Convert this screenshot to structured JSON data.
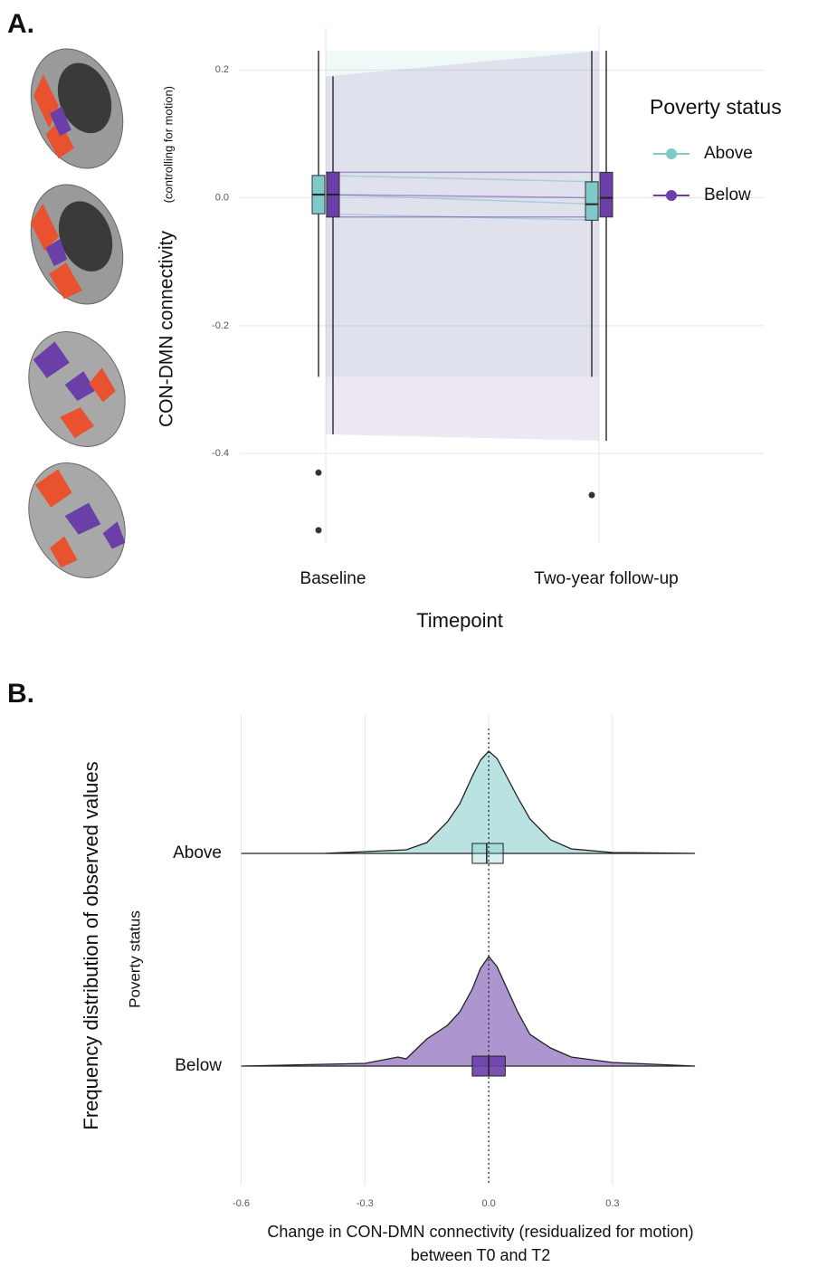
{
  "chart_data": [
    {
      "type": "boxplot",
      "panel_label": "A.",
      "categories": [
        "Baseline",
        "Two-year follow-up"
      ],
      "xlabel": "Timepoint",
      "ylabel": "CON-DMN connectivity",
      "ylabel_note": "(controlling for motion)",
      "ylim": [
        -0.54,
        0.267
      ],
      "yticks": [
        0.2,
        {
          "value": 0,
          "label": "0.0"
        },
        -0.2,
        -0.4
      ],
      "grid": true,
      "legend_title": "Poverty status",
      "legend_position": "right",
      "series": [
        {
          "name": "Above",
          "color": "#7fcac9",
          "stats": [
            {
              "low": -0.28,
              "q1": -0.025,
              "median": 0.005,
              "q3": 0.035,
              "high": 0.23,
              "outliers": [
                -0.43,
                -0.52
              ]
            },
            {
              "low": -0.28,
              "q1": -0.035,
              "median": -0.01,
              "q3": 0.025,
              "high": 0.23,
              "outliers": [
                -0.465
              ]
            }
          ]
        },
        {
          "name": "Below",
          "color": "#6a3fa8",
          "stats": [
            {
              "low": -0.37,
              "q1": -0.03,
              "median": 0.005,
              "q3": 0.04,
              "high": 0.19,
              "outliers": []
            },
            {
              "low": -0.38,
              "q1": -0.03,
              "median": 0.0,
              "q3": 0.04,
              "high": 0.23,
              "outliers": []
            }
          ]
        }
      ]
    },
    {
      "type": "raincloud",
      "panel_label": "B.",
      "categories": [
        "Above",
        "Below"
      ],
      "xlabel": [
        "Change in CON-DMN connectivity (residualized for motion)",
        "between T0 and T2"
      ],
      "ylabel": "Poverty status",
      "outer_ylabel": "Frequency distribution of observed values",
      "xlim": [
        -0.61,
        0.57
      ],
      "xticks": [
        -0.6,
        -0.3,
        {
          "value": 0,
          "label": "0.0"
        },
        0.3
      ],
      "reference_line": 0,
      "grid": true,
      "series": [
        {
          "name": "Above",
          "color": "#7fcac9",
          "density_x": [
            -0.6,
            -0.4,
            -0.3,
            -0.2,
            -0.15,
            -0.1,
            -0.07,
            -0.04,
            -0.02,
            0,
            0.02,
            0.04,
            0.07,
            0.1,
            0.15,
            0.2,
            0.3,
            0.5
          ],
          "density": [
            0,
            0,
            0.1,
            0.2,
            0.6,
            1.75,
            2.75,
            4.25,
            5.15,
            5.65,
            5.25,
            4.4,
            3.1,
            1.9,
            0.75,
            0.25,
            0.05,
            0
          ],
          "box": {
            "q1": -0.04,
            "median": -0.005,
            "q3": 0.035
          }
        },
        {
          "name": "Below",
          "color": "#6a3fa8",
          "density_x": [
            -0.6,
            -0.4,
            -0.3,
            -0.22,
            -0.2,
            -0.15,
            -0.1,
            -0.07,
            -0.04,
            -0.02,
            0,
            0.02,
            0.04,
            0.07,
            0.1,
            0.15,
            0.2,
            0.3,
            0.5
          ],
          "density": [
            0,
            0.1,
            0.15,
            0.5,
            0.4,
            1.5,
            2.25,
            3.0,
            4.25,
            5.4,
            6.05,
            5.5,
            4.5,
            3.0,
            1.75,
            1.0,
            0.5,
            0.2,
            0
          ],
          "box": {
            "q1": -0.04,
            "median": 0.0,
            "q3": 0.04
          }
        }
      ]
    }
  ]
}
